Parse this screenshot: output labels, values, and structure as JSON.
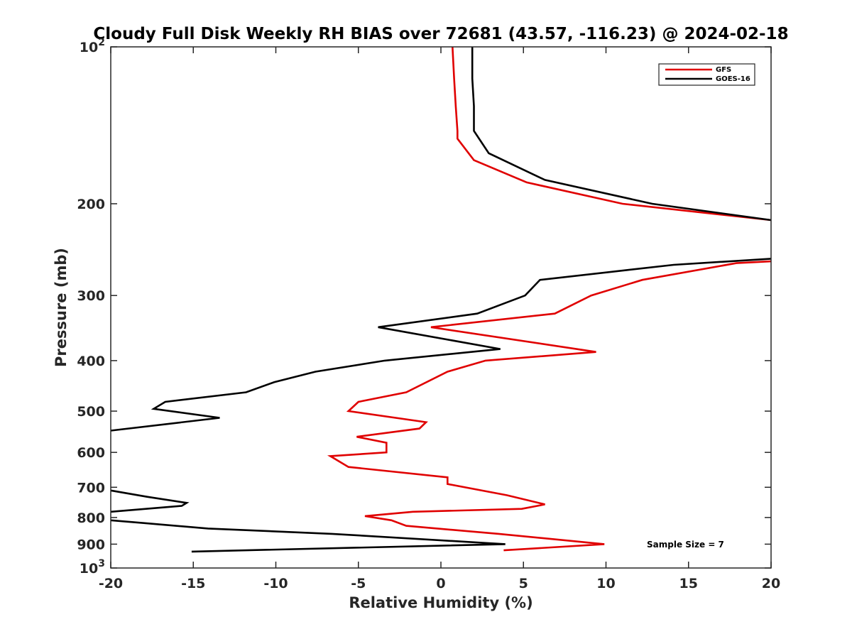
{
  "chart_data": {
    "type": "line",
    "title": "Cloudy Full Disk Weekly RH BIAS over 72681 (43.57, -116.23) @ 2024-02-18",
    "xlabel": "Relative Humidity (%)",
    "ylabel": "Pressure (mb)",
    "xlim": [
      -20,
      20
    ],
    "ylim": [
      100,
      1000
    ],
    "y_scale": "log",
    "y_reversed": true,
    "grid": false,
    "legend_position": "top-right",
    "annotation": "Sample Size = 7",
    "x_tick_labels": [
      "-20",
      "-15",
      "-10",
      "-5",
      "0",
      "5",
      "10",
      "15",
      "20"
    ],
    "y_tick_labels": [
      {
        "base": "10",
        "exp": "2"
      },
      {
        "base": "200",
        "exp": ""
      },
      {
        "base": "300",
        "exp": ""
      },
      {
        "base": "400",
        "exp": ""
      },
      {
        "base": "500",
        "exp": ""
      },
      {
        "base": "600",
        "exp": ""
      },
      {
        "base": "700",
        "exp": ""
      },
      {
        "base": "800",
        "exp": ""
      },
      {
        "base": "900",
        "exp": ""
      },
      {
        "base": "10",
        "exp": "3"
      }
    ],
    "series": [
      {
        "name": "GFS",
        "color": "#e00000",
        "x": [
          0.7,
          0.8,
          0.9,
          1.0,
          1.0,
          2.0,
          5.2,
          11.0,
          20.0,
          null,
          20.0,
          17.9,
          12.2,
          9.1,
          6.9,
          -0.6,
          9.4,
          2.7,
          0.4,
          -2.1,
          -5.0,
          -5.6,
          -0.9,
          -1.3,
          -5.1,
          -3.3,
          -3.3,
          -6.7,
          -5.6,
          0.4,
          0.4,
          4.0,
          6.3,
          4.9,
          -1.7,
          -4.6,
          -3.0,
          -2.1,
          3.5,
          9.9,
          3.8
        ],
        "y": [
          100,
          115,
          130,
          145,
          150,
          165,
          182,
          200,
          215,
          null,
          258,
          260,
          280,
          300,
          325,
          345,
          385,
          400,
          420,
          460,
          480,
          500,
          525,
          540,
          560,
          575,
          600,
          610,
          640,
          670,
          690,
          725,
          755,
          770,
          780,
          795,
          810,
          830,
          860,
          900,
          925
        ]
      },
      {
        "name": "GOES-16",
        "color": "#000000",
        "x": [
          1.9,
          1.9,
          2.0,
          2.0,
          2.9,
          6.3,
          12.8,
          20.0,
          null,
          20.0,
          14.1,
          6.0,
          5.1,
          2.2,
          -3.8,
          3.6,
          -3.4,
          -7.6,
          -10.1,
          -11.8,
          -16.7,
          -17.4,
          -13.4,
          -20.0,
          null,
          -20.0,
          -17.8,
          -15.4,
          -15.7,
          -20.0,
          null,
          -20.0,
          -18.0,
          -14.1,
          -6.6,
          3.9,
          -15.1
        ],
        "y": [
          100,
          115,
          130,
          145,
          160,
          180,
          200,
          215,
          null,
          255,
          262,
          280,
          300,
          325,
          345,
          380,
          400,
          420,
          440,
          460,
          480,
          495,
          515,
          545,
          null,
          710,
          730,
          750,
          760,
          780,
          null,
          810,
          820,
          840,
          860,
          900,
          930
        ]
      }
    ]
  }
}
